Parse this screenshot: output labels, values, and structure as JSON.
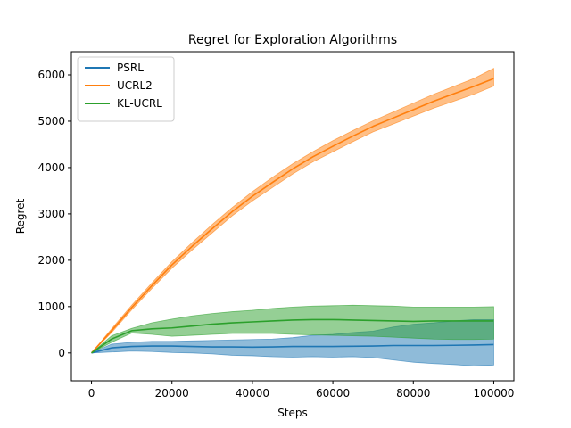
{
  "chart_data": {
    "type": "line",
    "title": "Regret for Exploration Algorithms",
    "xlabel": "Steps",
    "ylabel": "Regret",
    "xlim": [
      -5000,
      105000
    ],
    "ylim": [
      -600,
      6500
    ],
    "xticks": [
      0,
      20000,
      40000,
      60000,
      80000,
      100000
    ],
    "yticks": [
      0,
      1000,
      2000,
      3000,
      4000,
      5000,
      6000
    ],
    "xtick_labels": [
      "0",
      "20000",
      "40000",
      "60000",
      "80000",
      "100000"
    ],
    "ytick_labels": [
      "0",
      "1000",
      "2000",
      "3000",
      "4000",
      "5000",
      "6000"
    ],
    "grid": false,
    "legend_position": "upper-left",
    "series": [
      {
        "name": "PSRL",
        "color": "#1f77b4",
        "x": [
          0,
          5000,
          10000,
          15000,
          20000,
          25000,
          30000,
          35000,
          40000,
          45000,
          50000,
          55000,
          60000,
          65000,
          70000,
          75000,
          80000,
          85000,
          90000,
          95000,
          100000
        ],
        "values": [
          0,
          110,
          140,
          150,
          150,
          140,
          130,
          130,
          125,
          130,
          140,
          140,
          140,
          145,
          150,
          160,
          160,
          160,
          165,
          170,
          180
        ],
        "lower": [
          0,
          20,
          40,
          30,
          10,
          0,
          -20,
          -50,
          -60,
          -80,
          -90,
          -80,
          -90,
          -80,
          -100,
          -150,
          -200,
          -230,
          -250,
          -280,
          -260
        ],
        "upper": [
          0,
          190,
          230,
          250,
          250,
          260,
          270,
          280,
          290,
          300,
          330,
          380,
          400,
          440,
          470,
          560,
          620,
          650,
          690,
          720,
          720
        ]
      },
      {
        "name": "UCRL2",
        "color": "#ff7f0e",
        "x": [
          0,
          5000,
          10000,
          15000,
          20000,
          25000,
          30000,
          35000,
          40000,
          45000,
          50000,
          55000,
          60000,
          65000,
          70000,
          75000,
          80000,
          85000,
          90000,
          95000,
          100000
        ],
        "values": [
          0,
          480,
          980,
          1450,
          1900,
          2300,
          2680,
          3050,
          3380,
          3680,
          3970,
          4230,
          4460,
          4680,
          4890,
          5070,
          5250,
          5430,
          5590,
          5750,
          5920
        ],
        "lower": [
          0,
          440,
          930,
          1390,
          1830,
          2220,
          2590,
          2960,
          3280,
          3570,
          3860,
          4120,
          4340,
          4560,
          4770,
          4940,
          5110,
          5280,
          5430,
          5580,
          5760
        ],
        "upper": [
          0,
          520,
          1030,
          1510,
          1970,
          2380,
          2770,
          3140,
          3480,
          3790,
          4080,
          4340,
          4580,
          4800,
          5010,
          5200,
          5390,
          5580,
          5750,
          5920,
          6140
        ]
      },
      {
        "name": "KL-UCRL",
        "color": "#2ca02c",
        "x": [
          0,
          5000,
          10000,
          15000,
          20000,
          25000,
          30000,
          35000,
          40000,
          45000,
          50000,
          55000,
          60000,
          65000,
          70000,
          75000,
          80000,
          85000,
          90000,
          95000,
          100000
        ],
        "values": [
          0,
          300,
          480,
          520,
          540,
          580,
          620,
          650,
          670,
          690,
          710,
          720,
          720,
          710,
          700,
          690,
          680,
          690,
          690,
          690,
          690
        ],
        "lower": [
          0,
          230,
          430,
          400,
          360,
          380,
          400,
          420,
          420,
          420,
          400,
          390,
          380,
          370,
          360,
          340,
          320,
          300,
          290,
          290,
          300
        ],
        "upper": [
          0,
          370,
          530,
          650,
          730,
          800,
          850,
          890,
          920,
          960,
          990,
          1010,
          1020,
          1030,
          1020,
          1010,
          990,
          990,
          990,
          990,
          1000
        ]
      }
    ]
  }
}
